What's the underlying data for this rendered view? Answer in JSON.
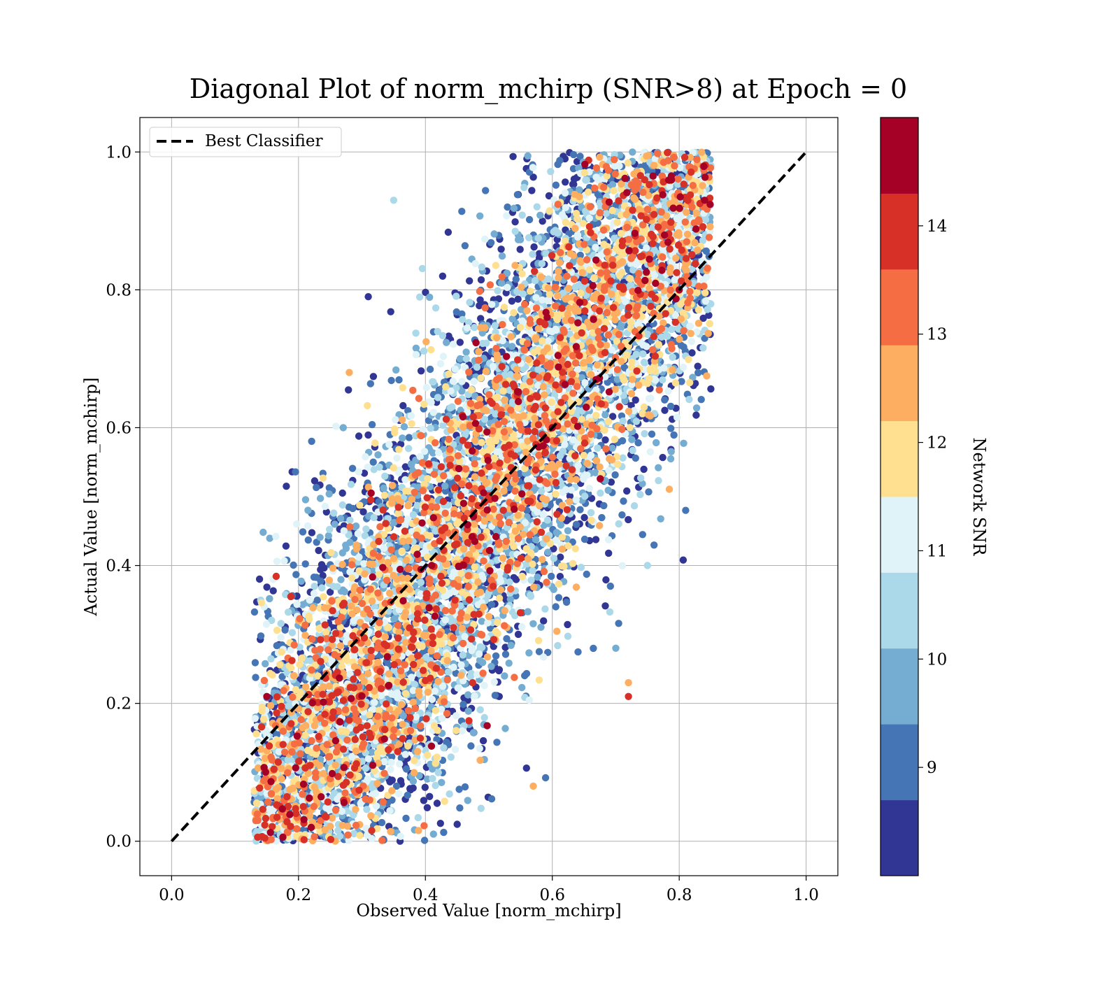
{
  "chart_data": {
    "type": "scatter",
    "title": "Diagonal Plot of norm_mchirp (SNR>8) at Epoch = 0",
    "xlabel": "Observed Value [norm_mchirp]",
    "ylabel": "Actual Value [norm_mchirp]",
    "xlim": [
      -0.05,
      1.05
    ],
    "ylim": [
      -0.05,
      1.05
    ],
    "xticks": [
      "0.0",
      "0.2",
      "0.4",
      "0.6",
      "0.8",
      "1.0"
    ],
    "yticks": [
      "0.0",
      "0.2",
      "0.4",
      "0.6",
      "0.8",
      "1.0"
    ],
    "grid": true,
    "legend": {
      "position": "top-left",
      "entries": [
        "Best Classifier"
      ]
    },
    "reference_line": {
      "name": "Best Classifier",
      "x": [
        0.0,
        1.0
      ],
      "y": [
        0.0,
        1.0
      ],
      "style": "dashed",
      "color": "#000000"
    },
    "colorbar": {
      "label": "Network SNR",
      "range": [
        8,
        15
      ],
      "ticks": [
        "9",
        "10",
        "11",
        "12",
        "13",
        "14"
      ],
      "bins": [
        {
          "from": 8.0,
          "to": 8.7,
          "color": "#313695"
        },
        {
          "from": 8.7,
          "to": 9.4,
          "color": "#4575b4"
        },
        {
          "from": 9.4,
          "to": 10.1,
          "color": "#74add1"
        },
        {
          "from": 10.1,
          "to": 10.8,
          "color": "#abd9e9"
        },
        {
          "from": 10.8,
          "to": 11.5,
          "color": "#e0f3f8"
        },
        {
          "from": 11.5,
          "to": 12.2,
          "color": "#fee090"
        },
        {
          "from": 12.2,
          "to": 12.9,
          "color": "#fdae61"
        },
        {
          "from": 12.9,
          "to": 13.6,
          "color": "#f46d43"
        },
        {
          "from": 13.6,
          "to": 14.3,
          "color": "#d73027"
        },
        {
          "from": 14.3,
          "to": 15.0,
          "color": "#a50026"
        }
      ]
    },
    "point_cloud": {
      "description_of_distribution": "dense band along diagonal; observed range ~0.14-0.85, actual range ~0.0-1.0; high SNR points concentrated near diagonal, low SNR points spread wider",
      "count_approx": 9000,
      "sample_points": [
        {
          "x": 0.15,
          "y": 0.21,
          "snr": 14.5
        },
        {
          "x": 0.22,
          "y": 0.02,
          "snr": 14.5
        },
        {
          "x": 0.31,
          "y": 0.79,
          "snr": 8.3
        },
        {
          "x": 0.35,
          "y": 0.93,
          "snr": 10.5
        },
        {
          "x": 0.36,
          "y": 0.0,
          "snr": 8.3
        },
        {
          "x": 0.56,
          "y": 0.99,
          "snr": 8.3
        },
        {
          "x": 0.62,
          "y": 0.99,
          "snr": 8.3
        },
        {
          "x": 0.72,
          "y": 0.21,
          "snr": 14.0
        },
        {
          "x": 0.72,
          "y": 0.23,
          "snr": 12.5
        },
        {
          "x": 0.7,
          "y": 0.28,
          "snr": 9.8
        },
        {
          "x": 0.75,
          "y": 0.4,
          "snr": 10.5
        },
        {
          "x": 0.85,
          "y": 0.98,
          "snr": 10.5
        },
        {
          "x": 0.84,
          "y": 0.93,
          "snr": 14.5
        },
        {
          "x": 0.57,
          "y": 0.08,
          "snr": 12.5
        },
        {
          "x": 0.28,
          "y": 0.68,
          "snr": 12.5
        },
        {
          "x": 0.41,
          "y": 0.4,
          "snr": 14.5
        },
        {
          "x": 0.6,
          "y": 0.6,
          "snr": 14.5
        },
        {
          "x": 0.8,
          "y": 0.8,
          "snr": 14.5
        }
      ]
    }
  }
}
